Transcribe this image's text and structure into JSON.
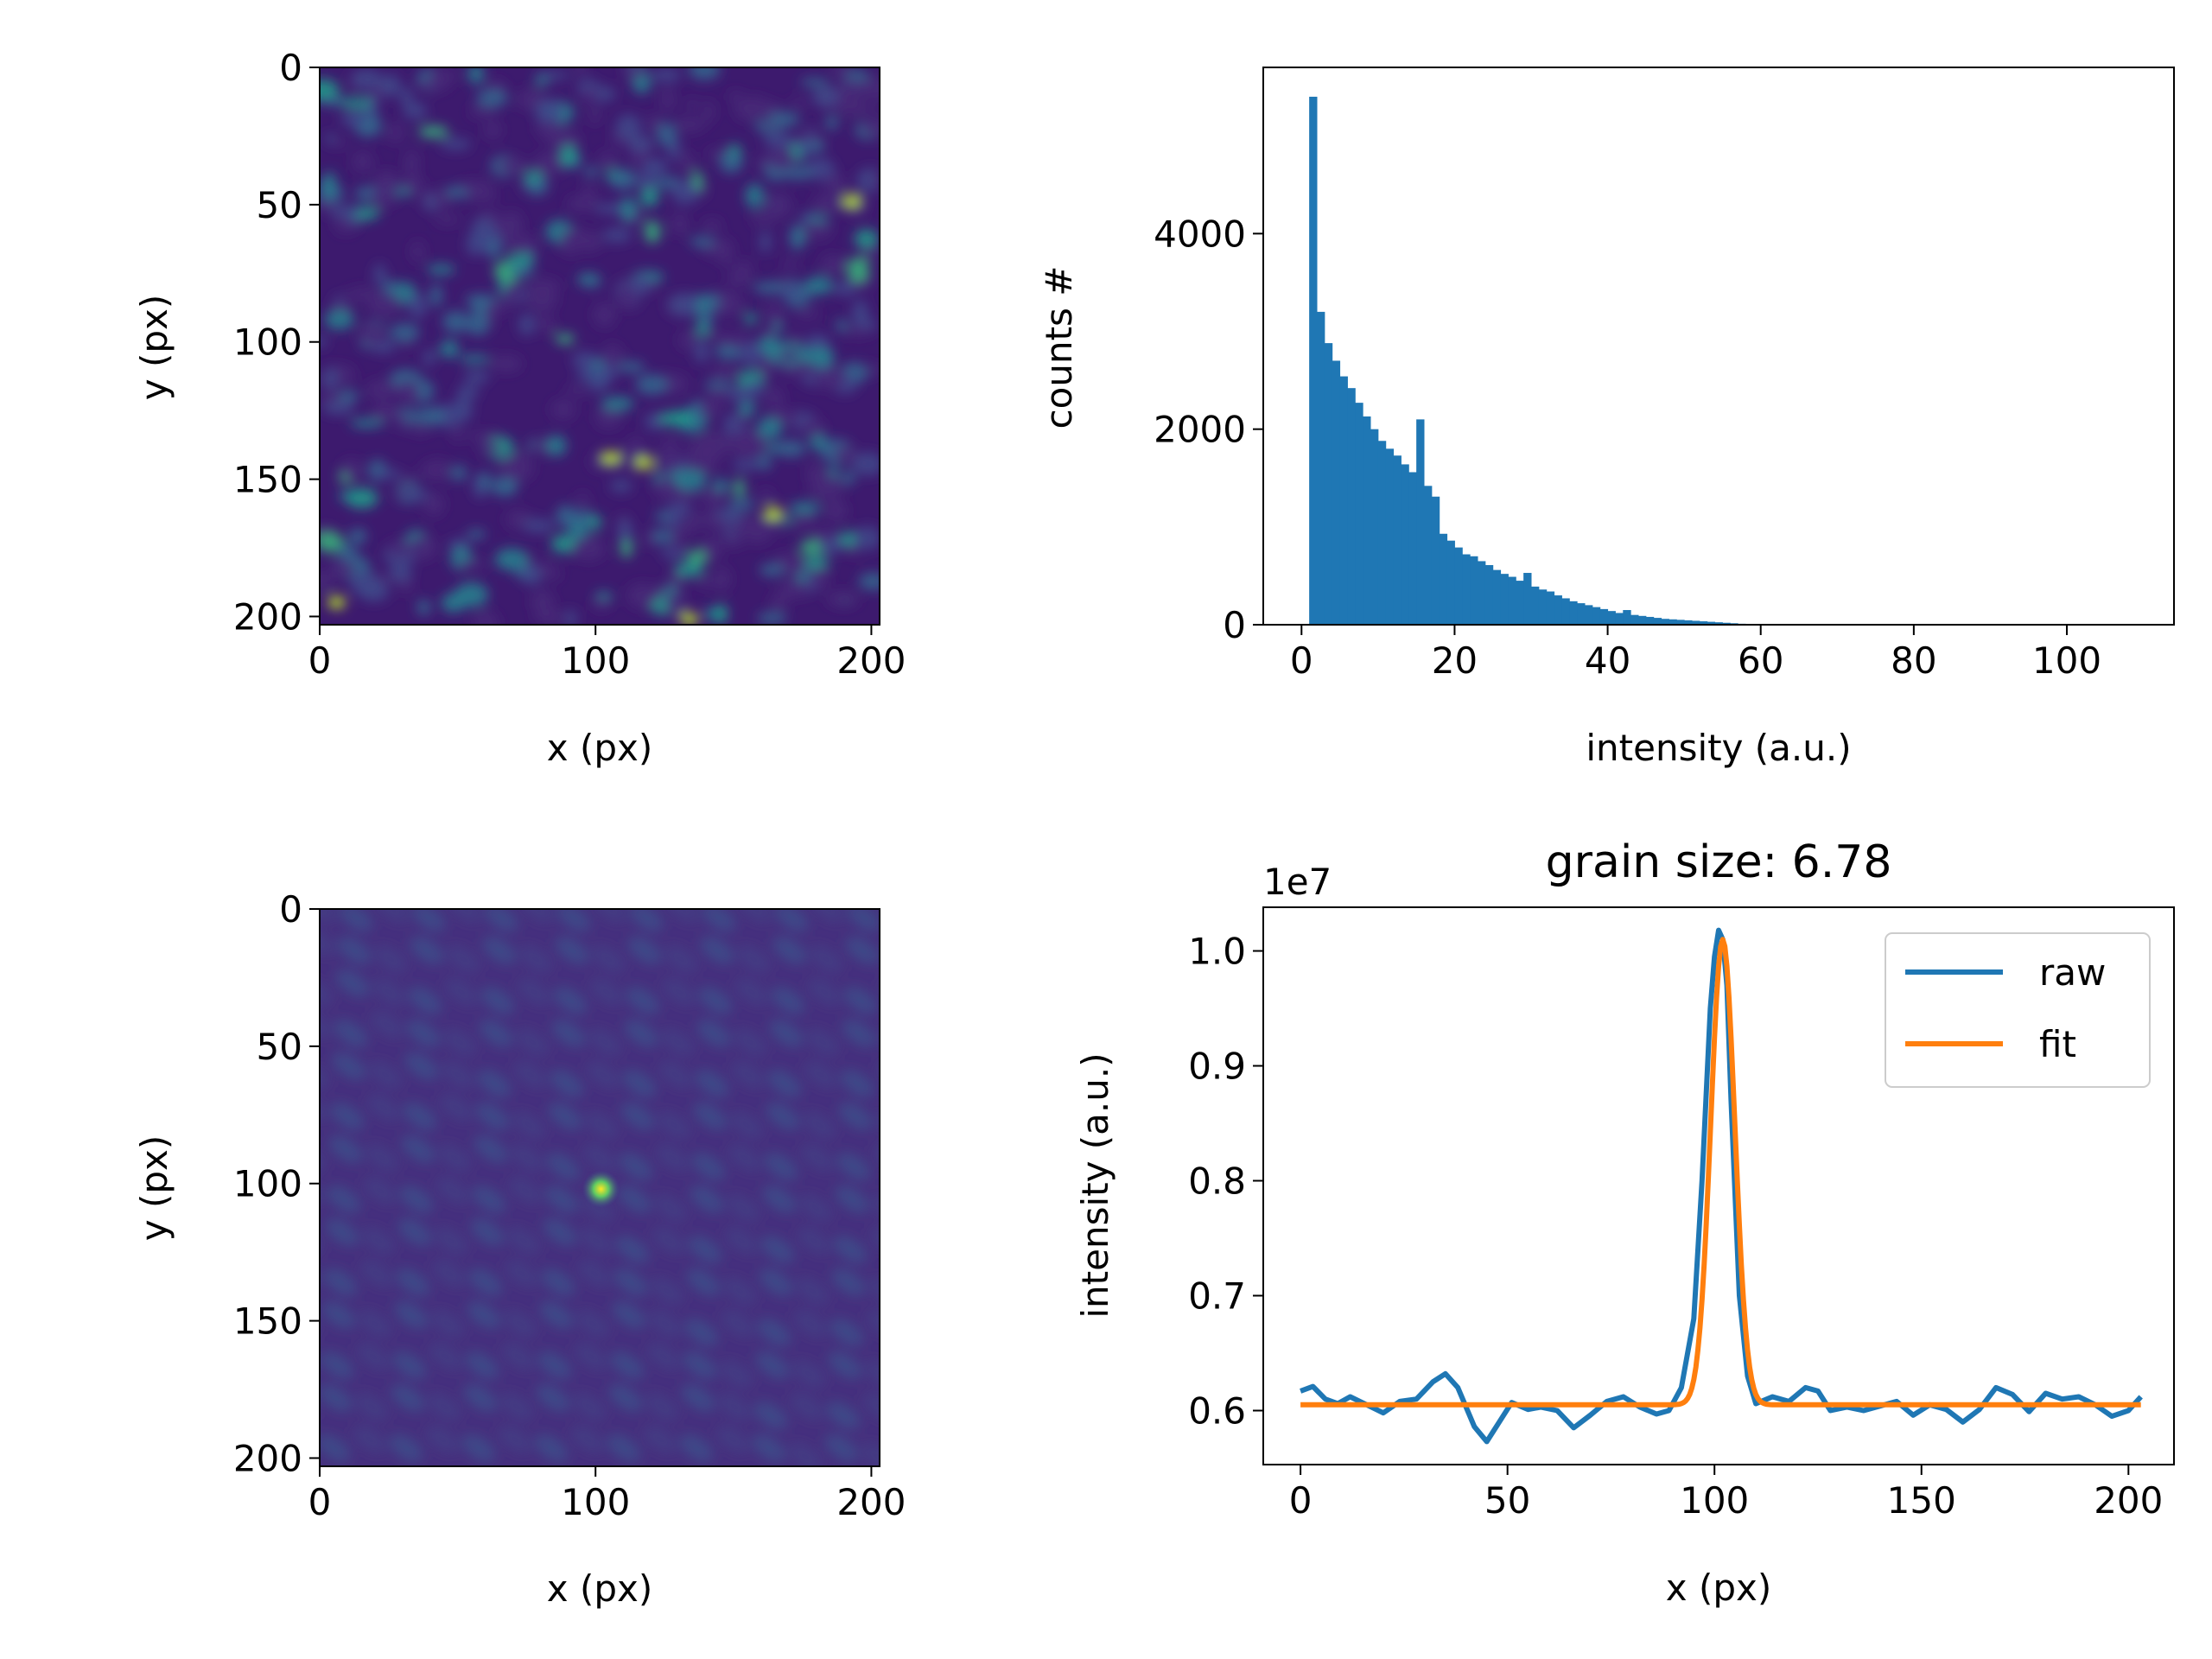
{
  "colors": {
    "raw": "#1f77b4",
    "fit": "#ff7f0e",
    "hist": "#1f77b4",
    "viridis_low": "#440154",
    "viridis_mid": "#21918c",
    "viridis_high": "#fde725"
  },
  "chart_data": [
    {
      "type": "heatmap",
      "xlabel": "x (px)",
      "ylabel": "y (px)",
      "xlim": [
        0,
        203
      ],
      "ylim": [
        203,
        0
      ],
      "xticks": [
        "0",
        "100",
        "200"
      ],
      "yticks": [
        "0",
        "50",
        "100",
        "150",
        "200"
      ],
      "colormap": "viridis",
      "description_values": "speckle intensity image"
    },
    {
      "type": "bar",
      "xlabel": "intensity (a.u.)",
      "ylabel": "counts #",
      "xlim": [
        -5,
        114
      ],
      "ylim": [
        0,
        5700
      ],
      "xticks": [
        "0",
        "20",
        "40",
        "60",
        "80",
        "100"
      ],
      "yticks": [
        "0",
        "2000",
        "4000"
      ],
      "bin_width": 1,
      "bin_start": 1,
      "values": [
        5400,
        3200,
        2880,
        2700,
        2540,
        2420,
        2270,
        2130,
        2000,
        1880,
        1800,
        1730,
        1640,
        1560,
        2100,
        1420,
        1310,
        930,
        860,
        790,
        720,
        700,
        650,
        610,
        560,
        520,
        490,
        450,
        530,
        390,
        360,
        340,
        300,
        270,
        240,
        220,
        200,
        180,
        160,
        140,
        120,
        150,
        100,
        90,
        80,
        70,
        60,
        55,
        50,
        45,
        40,
        35,
        30,
        25,
        20,
        15,
        10,
        5
      ]
    },
    {
      "type": "heatmap",
      "xlabel": "x (px)",
      "ylabel": "y (px)",
      "xlim": [
        0,
        203
      ],
      "ylim": [
        203,
        0
      ],
      "xticks": [
        "0",
        "100",
        "200"
      ],
      "yticks": [
        "0",
        "50",
        "100",
        "150",
        "200"
      ],
      "colormap": "viridis",
      "peak": [
        102,
        102
      ]
    },
    {
      "type": "line",
      "title": "grain size: 6.78",
      "xlabel": "x (px)",
      "ylabel": "intensity (a.u.)",
      "offset_text": "1e7",
      "xlim": [
        -9,
        211
      ],
      "ylim": [
        0.553,
        1.038
      ],
      "xticks": [
        "0",
        "50",
        "100",
        "150",
        "200"
      ],
      "yticks": [
        "0.6",
        "0.7",
        "0.8",
        "0.9",
        "1.0"
      ],
      "legend": {
        "position": "top-right",
        "entries": [
          "raw",
          "fit"
        ]
      },
      "series": [
        {
          "name": "raw",
          "x": [
            0,
            3,
            6,
            9,
            12,
            16,
            20,
            24,
            28,
            32,
            35,
            38,
            42,
            45,
            48,
            51,
            55,
            58,
            62,
            66,
            70,
            74,
            78,
            82,
            86,
            89,
            92,
            95,
            97,
            99,
            100,
            101,
            102,
            103,
            104,
            106,
            108,
            110,
            114,
            118,
            122,
            125,
            128,
            132,
            136,
            140,
            144,
            148,
            152,
            156,
            160,
            164,
            168,
            172,
            176,
            180,
            184,
            188,
            192,
            196,
            200,
            203
          ],
          "y": [
            0.617,
            0.621,
            0.61,
            0.606,
            0.612,
            0.605,
            0.598,
            0.608,
            0.61,
            0.625,
            0.632,
            0.62,
            0.586,
            0.573,
            0.59,
            0.607,
            0.601,
            0.603,
            0.6,
            0.585,
            0.596,
            0.608,
            0.612,
            0.603,
            0.597,
            0.6,
            0.62,
            0.68,
            0.8,
            0.95,
            0.995,
            1.018,
            1.01,
            0.97,
            0.87,
            0.7,
            0.63,
            0.606,
            0.612,
            0.608,
            0.62,
            0.617,
            0.6,
            0.603,
            0.6,
            0.604,
            0.608,
            0.596,
            0.605,
            0.601,
            0.59,
            0.601,
            0.62,
            0.614,
            0.599,
            0.615,
            0.61,
            0.612,
            0.605,
            0.595,
            0.6,
            0.612
          ]
        },
        {
          "name": "fit",
          "baseline": 0.605,
          "amplitude": 0.405,
          "center": 102,
          "sigma": 2.9,
          "x_range": [
            0,
            203
          ]
        }
      ]
    }
  ]
}
